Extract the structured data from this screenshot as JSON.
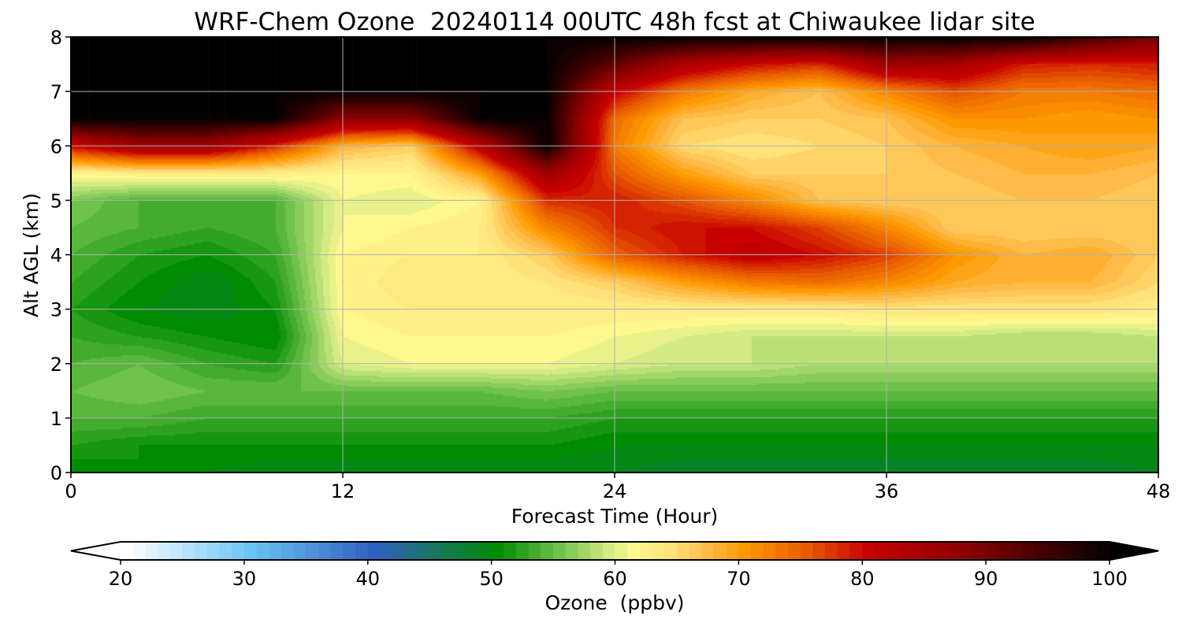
{
  "chart_data": {
    "type": "heatmap",
    "title": "WRF-Chem Ozone  20240114 00UTC 48h fcst at Chiwaukee lidar site",
    "xlabel": "Forecast Time (Hour)",
    "ylabel": "Alt AGL (km)",
    "xlim": [
      0,
      48
    ],
    "ylim": [
      0,
      8
    ],
    "xticks": [
      "0",
      "12",
      "24",
      "36",
      "48"
    ],
    "yticks": [
      "0",
      "1",
      "2",
      "3",
      "4",
      "5",
      "6",
      "7",
      "8"
    ],
    "grid": true,
    "x_hours": [
      0,
      3,
      6,
      9,
      12,
      15,
      18,
      21,
      24,
      27,
      30,
      33,
      36,
      39,
      42,
      45,
      48
    ],
    "y_km": [
      0,
      0.5,
      1,
      1.5,
      2,
      2.5,
      3,
      3.5,
      4,
      4.5,
      5,
      5.5,
      6,
      6.5,
      7,
      7.5,
      8
    ],
    "ozone_ppbv": [
      [
        50,
        51,
        50,
        49,
        49,
        49,
        49,
        49,
        49,
        48,
        48,
        48,
        48,
        48,
        48,
        48,
        49
      ],
      [
        52,
        51,
        51,
        51,
        51,
        51,
        51,
        51,
        50,
        50,
        50,
        50,
        50,
        50,
        50,
        50,
        50
      ],
      [
        54,
        54,
        53,
        53,
        53,
        53,
        53,
        53,
        52,
        52,
        52,
        52,
        52,
        52,
        52,
        52,
        52
      ],
      [
        55,
        56,
        55,
        55,
        55,
        55,
        55,
        56,
        55,
        55,
        55,
        55,
        55,
        55,
        55,
        55,
        55
      ],
      [
        54,
        55,
        53,
        52,
        60,
        61,
        61,
        61,
        60,
        59,
        59,
        58,
        58,
        58,
        58,
        58,
        58
      ],
      [
        53,
        52,
        51,
        50,
        61,
        62,
        62,
        62,
        61,
        60,
        59,
        59,
        59,
        59,
        58,
        58,
        59
      ],
      [
        52,
        50,
        49,
        51,
        62,
        63,
        63,
        63,
        63,
        63,
        63,
        63,
        64,
        64,
        64,
        64,
        63
      ],
      [
        53,
        51,
        49,
        52,
        62,
        64,
        63,
        64,
        66,
        70,
        73,
        74,
        72,
        69,
        68,
        68,
        65
      ],
      [
        54,
        52,
        51,
        53,
        62,
        63,
        63,
        66,
        75,
        79,
        82,
        80,
        77,
        71,
        68,
        69,
        66
      ],
      [
        55,
        54,
        53,
        54,
        61,
        62,
        63,
        72,
        78,
        80,
        80,
        77,
        72,
        66,
        66,
        66,
        66
      ],
      [
        56,
        54,
        54,
        54,
        61,
        60,
        62,
        78,
        79,
        76,
        72,
        67,
        66,
        66,
        67,
        67,
        66
      ],
      [
        62,
        63,
        63,
        63,
        62,
        62,
        70,
        86,
        76,
        70,
        66,
        66,
        66,
        67,
        68,
        68,
        67
      ],
      [
        80,
        86,
        86,
        78,
        68,
        66,
        82,
        100,
        73,
        65,
        64,
        65,
        66,
        68,
        69,
        70,
        69
      ],
      [
        100,
        100,
        100,
        100,
        88,
        88,
        100,
        100,
        74,
        67,
        66,
        66,
        67,
        71,
        71,
        70,
        71
      ],
      [
        100,
        100,
        100,
        100,
        100,
        100,
        100,
        100,
        81,
        73,
        69,
        67,
        72,
        76,
        73,
        73,
        74
      ],
      [
        100,
        100,
        100,
        100,
        100,
        100,
        100,
        100,
        92,
        84,
        80,
        78,
        86,
        85,
        79,
        78,
        79
      ],
      [
        100,
        100,
        100,
        100,
        100,
        100,
        100,
        100,
        100,
        100,
        100,
        100,
        100,
        100,
        100,
        95,
        90
      ]
    ],
    "colorbar": {
      "label": "Ozone  (ppbv)",
      "min": 20,
      "max": 100,
      "ticks": [
        "20",
        "30",
        "40",
        "50",
        "60",
        "70",
        "80",
        "90",
        "100"
      ],
      "extend": "both",
      "color_stops": [
        {
          "value": 20,
          "color": "#ffffff"
        },
        {
          "value": 30,
          "color": "#6ac4f4"
        },
        {
          "value": 40,
          "color": "#2f5fbf"
        },
        {
          "value": 50,
          "color": "#008c00"
        },
        {
          "value": 55,
          "color": "#6fc24a"
        },
        {
          "value": 59,
          "color": "#d3eb84"
        },
        {
          "value": 61,
          "color": "#fff88f"
        },
        {
          "value": 64,
          "color": "#ffe27a"
        },
        {
          "value": 67,
          "color": "#ffbb48"
        },
        {
          "value": 70,
          "color": "#ff9900"
        },
        {
          "value": 75,
          "color": "#e85a00"
        },
        {
          "value": 80,
          "color": "#c70000"
        },
        {
          "value": 88,
          "color": "#8a0000"
        },
        {
          "value": 95,
          "color": "#3a0000"
        },
        {
          "value": 100,
          "color": "#000000"
        }
      ]
    }
  }
}
